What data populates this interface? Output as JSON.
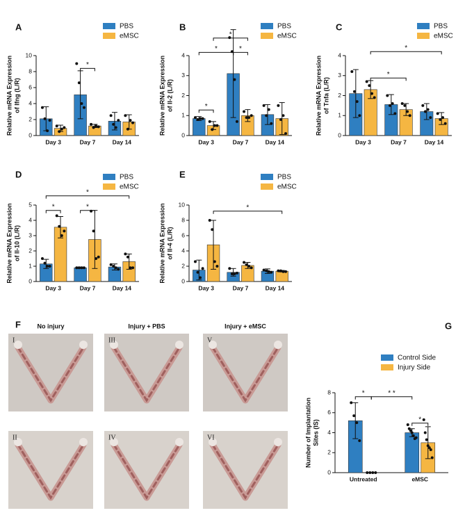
{
  "chart_data": [
    {
      "type": "bar",
      "letter": "A",
      "ylabel": [
        "Relative mRNA Expression",
        "of Ifng (L/R)"
      ],
      "categories": [
        "Day 3",
        "Day 7",
        "Day 14"
      ],
      "ylim": [
        0,
        10
      ],
      "yticks": [
        0,
        2,
        4,
        6,
        8,
        10
      ],
      "series": [
        {
          "name": "PBS",
          "color": "#2f7fc1",
          "values": [
            2.1,
            5.1,
            1.8
          ],
          "errors": [
            1.5,
            3.0,
            1.1
          ],
          "points": [
            [
              3.5,
              2.1,
              0.6,
              1.9
            ],
            [
              9,
              6.6,
              4.0,
              3.5
            ],
            [
              2.5,
              1.4,
              1.0,
              1.9
            ]
          ]
        },
        {
          "name": "eMSC",
          "color": "#f5b642",
          "values": [
            0.9,
            1.2,
            1.7
          ],
          "errors": [
            0.4,
            0.2,
            0.9
          ],
          "points": [
            [
              1.2,
              0.5,
              0.8,
              1.0
            ],
            [
              1.4,
              1.0,
              1.2,
              1.1
            ],
            [
              2.5,
              0.8,
              1.9,
              1.6
            ]
          ]
        }
      ],
      "annotations": [
        "*"
      ]
    },
    {
      "type": "bar",
      "letter": "B",
      "ylabel": [
        "Relative mRNA Expression",
        "of Il-2 (L/R)"
      ],
      "categories": [
        "Day 3",
        "Day 7",
        "Day 14"
      ],
      "ylim": [
        0,
        4
      ],
      "yticks": [
        0,
        1,
        2,
        3,
        4
      ],
      "series": [
        {
          "name": "PBS",
          "color": "#2f7fc1",
          "values": [
            0.85,
            3.1,
            1.05
          ],
          "errors": [
            0.1,
            2.2,
            0.5
          ],
          "points": [
            [
              0.9,
              0.8,
              0.85,
              0.85
            ],
            [
              4.9,
              4.2,
              2.8,
              0.7
            ],
            [
              1.5,
              1.0,
              1.3,
              0.6
            ]
          ]
        },
        {
          "name": "eMSC",
          "color": "#f5b642",
          "values": [
            0.5,
            1.0,
            0.85
          ],
          "errors": [
            0.2,
            0.3,
            0.8
          ],
          "points": [
            [
              0.7,
              0.3,
              0.5,
              0.5
            ],
            [
              1.2,
              0.9,
              0.9,
              1.0
            ],
            [
              1.5,
              0.8,
              1.0,
              0.1
            ]
          ]
        }
      ],
      "annotations": [
        "*",
        "*",
        "*",
        "*"
      ]
    },
    {
      "type": "bar",
      "letter": "C",
      "ylabel": [
        "Relative mRNA Expression",
        "of Tnfa (L/R)"
      ],
      "categories": [
        "Day 3",
        "Day 7",
        "Day 14"
      ],
      "ylim": [
        0,
        4
      ],
      "yticks": [
        0,
        1,
        2,
        3,
        4
      ],
      "series": [
        {
          "name": "PBS",
          "color": "#2f7fc1",
          "values": [
            2.1,
            1.55,
            1.2
          ],
          "errors": [
            1.2,
            0.5,
            0.4
          ],
          "points": [
            [
              3.2,
              2.2,
              1.7,
              1.0
            ],
            [
              2.0,
              1.5,
              1.6,
              1.1
            ],
            [
              1.5,
              1.2,
              1.3,
              0.9
            ]
          ]
        },
        {
          "name": "eMSC",
          "color": "#f5b642",
          "values": [
            2.3,
            1.3,
            0.85
          ],
          "errors": [
            0.45,
            0.3,
            0.3
          ],
          "points": [
            [
              2.7,
              2.5,
              2.1,
              1.9
            ],
            [
              1.6,
              1.5,
              1.2,
              1.0
            ],
            [
              1.1,
              0.8,
              0.9,
              0.6
            ]
          ]
        }
      ],
      "annotations": [
        "*",
        "*"
      ]
    },
    {
      "type": "bar",
      "letter": "D",
      "ylabel": [
        "Relative mRNA Expression",
        "of Il-10 (L/R)"
      ],
      "categories": [
        "Day 3",
        "Day 7",
        "Day 14"
      ],
      "ylim": [
        0,
        5
      ],
      "yticks": [
        0,
        1,
        2,
        3,
        4,
        5
      ],
      "series": [
        {
          "name": "PBS",
          "color": "#2f7fc1",
          "values": [
            1.15,
            0.9,
            0.95
          ],
          "errors": [
            0.3,
            0.05,
            0.2
          ],
          "points": [
            [
              1.5,
              1.2,
              1.0,
              1.0
            ],
            [
              0.9,
              0.9,
              0.9,
              0.9
            ],
            [
              1.1,
              1.0,
              0.9,
              0.8
            ]
          ]
        },
        {
          "name": "eMSC",
          "color": "#f5b642",
          "values": [
            3.55,
            2.75,
            1.3
          ],
          "errors": [
            0.7,
            1.9,
            0.5
          ],
          "points": [
            [
              4.3,
              3.6,
              3.0,
              3.3
            ],
            [
              4.6,
              3.3,
              1.5,
              1.6
            ],
            [
              1.8,
              1.6,
              0.9,
              0.9
            ]
          ]
        }
      ],
      "annotations": [
        "*",
        "*",
        "*"
      ]
    },
    {
      "type": "bar",
      "letter": "E",
      "ylabel": [
        "Relative mRNA Expression",
        "of Il-4 (L/R)"
      ],
      "categories": [
        "Day 3",
        "Day 7",
        "Day 14"
      ],
      "ylim": [
        0,
        10
      ],
      "yticks": [
        0,
        2,
        4,
        6,
        8,
        10
      ],
      "series": [
        {
          "name": "PBS",
          "color": "#2f7fc1",
          "values": [
            1.5,
            1.2,
            1.35
          ],
          "errors": [
            1.3,
            0.5,
            0.3
          ],
          "points": [
            [
              2.6,
              1.2,
              0.5,
              1.7
            ],
            [
              1.7,
              1.0,
              1.0,
              1.1
            ],
            [
              1.5,
              1.4,
              1.3,
              1.2
            ]
          ]
        },
        {
          "name": "eMSC",
          "color": "#f5b642",
          "values": [
            4.8,
            2.1,
            1.35
          ],
          "errors": [
            3.2,
            0.4,
            0.1
          ],
          "points": [
            [
              8.0,
              6.8,
              2.6,
              2.0
            ],
            [
              2.5,
              2.2,
              2.0,
              1.8
            ],
            [
              1.4,
              1.4,
              1.3,
              1.3
            ]
          ]
        }
      ],
      "annotations": [
        "*"
      ]
    },
    {
      "type": "bar",
      "letter": "G",
      "ylabel": [
        "Number of Implantation",
        "Sites (IS)"
      ],
      "categories": [
        "Untreated",
        "eMSC"
      ],
      "ylim": [
        0,
        8
      ],
      "yticks": [
        0,
        2,
        4,
        6,
        8
      ],
      "series": [
        {
          "name": "Control Side",
          "color": "#2f7fc1",
          "values": [
            5.2,
            4.0
          ],
          "errors": [
            1.8,
            0.4
          ],
          "points": [
            [
              7,
              5.7,
              5.0,
              3.2
            ],
            [
              4.8,
              4.4,
              4.2,
              4.0,
              3.7,
              3.4,
              3.5
            ]
          ]
        },
        {
          "name": "Injury Side",
          "color": "#f5b642",
          "values": [
            0,
            3.0
          ],
          "errors": [
            0,
            1.6
          ],
          "points": [
            [
              0,
              0,
              0,
              0
            ],
            [
              5.3,
              4.0,
              3.3,
              2.7,
              2.5,
              2.3,
              1.5
            ]
          ]
        }
      ],
      "annotations": [
        "*",
        "* *",
        "*"
      ]
    }
  ],
  "photo_panel": {
    "letter": "F",
    "columns": [
      "No injury",
      "Injury + PBS",
      "Injury + eMSC"
    ],
    "numerals": [
      [
        "I",
        "II"
      ],
      [
        "III",
        "IV"
      ],
      [
        "V",
        "VI"
      ]
    ]
  }
}
